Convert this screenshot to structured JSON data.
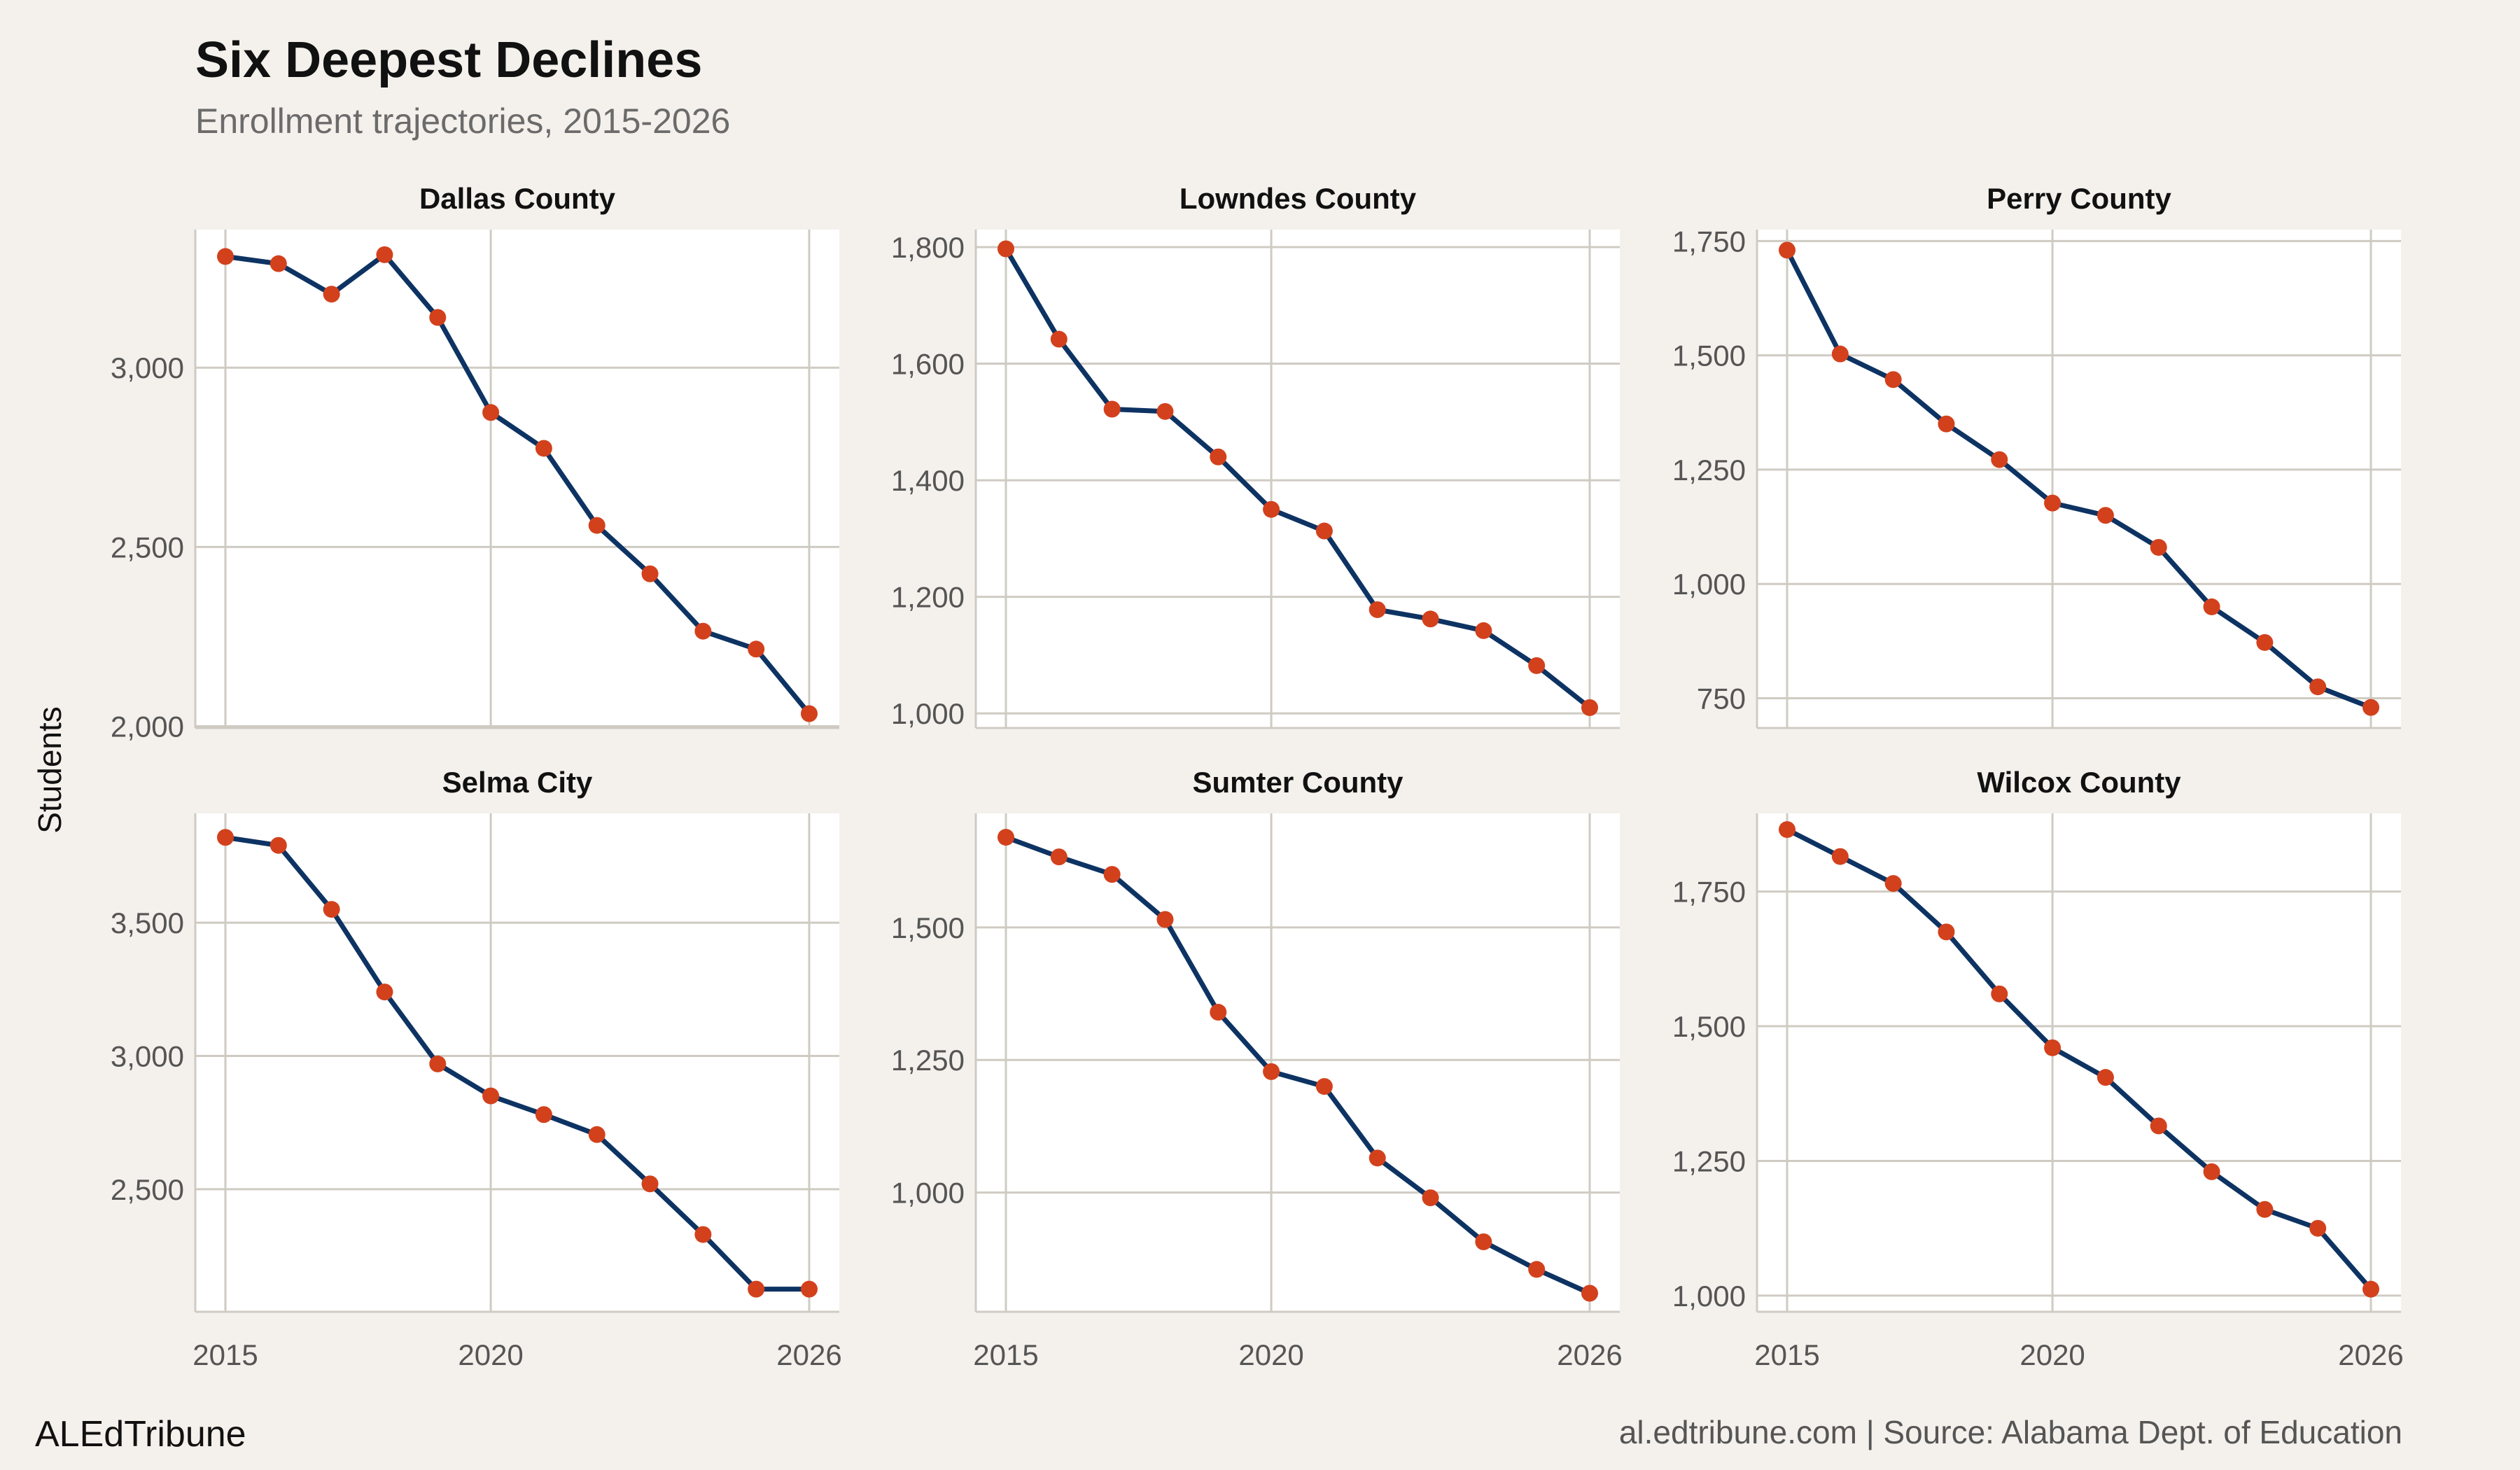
{
  "title": "Six Deepest Declines",
  "subtitle": "Enrollment trajectories, 2015-2026",
  "ylabel": "Students",
  "brand": "ALEdTribune",
  "source": "al.edtribune.com | Source: Alabama Dept. of Education",
  "colors": {
    "background": "#f4f1ec",
    "panel": "#ffffff",
    "grid": "#cfcbc3",
    "line": "#0d3363",
    "point": "#d2411c"
  },
  "chart_data": {
    "type": "line",
    "x": [
      2015,
      2016,
      2017,
      2018,
      2019,
      2020,
      2021,
      2022,
      2023,
      2024,
      2025,
      2026
    ],
    "xticks": [
      2015,
      2020,
      2026
    ],
    "series": [
      {
        "name": "Dallas County",
        "values": [
          3310,
          3290,
          3205,
          3315,
          3140,
          2875,
          2775,
          2560,
          2425,
          2265,
          2215,
          2035
        ],
        "ylim": [
          1995,
          3385
        ],
        "yticks": [
          2000,
          2500,
          3000
        ],
        "ytick_labels": [
          "2,000",
          "2,500",
          "3,000"
        ]
      },
      {
        "name": "Lowndes County",
        "values": [
          1797,
          1642,
          1522,
          1518,
          1440,
          1350,
          1313,
          1178,
          1162,
          1142,
          1082,
          1010
        ],
        "ylim": [
          975,
          1830
        ],
        "yticks": [
          1000,
          1200,
          1400,
          1600,
          1800
        ],
        "ytick_labels": [
          "1,000",
          "1,200",
          "1,400",
          "1,600",
          "1,800"
        ]
      },
      {
        "name": "Perry County",
        "values": [
          1730,
          1503,
          1447,
          1350,
          1272,
          1177,
          1150,
          1080,
          950,
          872,
          775,
          730
        ],
        "ylim": [
          685,
          1775
        ],
        "yticks": [
          750,
          1000,
          1250,
          1500,
          1750
        ],
        "ytick_labels": [
          "750",
          "1,000",
          "1,250",
          "1,500",
          "1,750"
        ]
      },
      {
        "name": "Selma City",
        "values": [
          3820,
          3790,
          3550,
          3240,
          2970,
          2850,
          2780,
          2705,
          2520,
          2330,
          2125,
          2125
        ],
        "ylim": [
          2040,
          3910
        ],
        "yticks": [
          2500,
          3000,
          3500
        ],
        "ytick_labels": [
          "2,500",
          "3,000",
          "3,500"
        ]
      },
      {
        "name": "Sumter County",
        "values": [
          1670,
          1633,
          1600,
          1515,
          1340,
          1228,
          1200,
          1065,
          990,
          907,
          855,
          810
        ],
        "ylim": [
          775,
          1715
        ],
        "yticks": [
          1000,
          1250,
          1500
        ],
        "ytick_labels": [
          "1,000",
          "1,250",
          "1,500"
        ]
      },
      {
        "name": "Wilcox County",
        "values": [
          1865,
          1815,
          1765,
          1675,
          1560,
          1460,
          1405,
          1315,
          1230,
          1160,
          1125,
          1012
        ],
        "ylim": [
          970,
          1895
        ],
        "yticks": [
          1000,
          1250,
          1500,
          1750
        ],
        "ytick_labels": [
          "1,000",
          "1,250",
          "1,500",
          "1,750"
        ]
      }
    ]
  }
}
